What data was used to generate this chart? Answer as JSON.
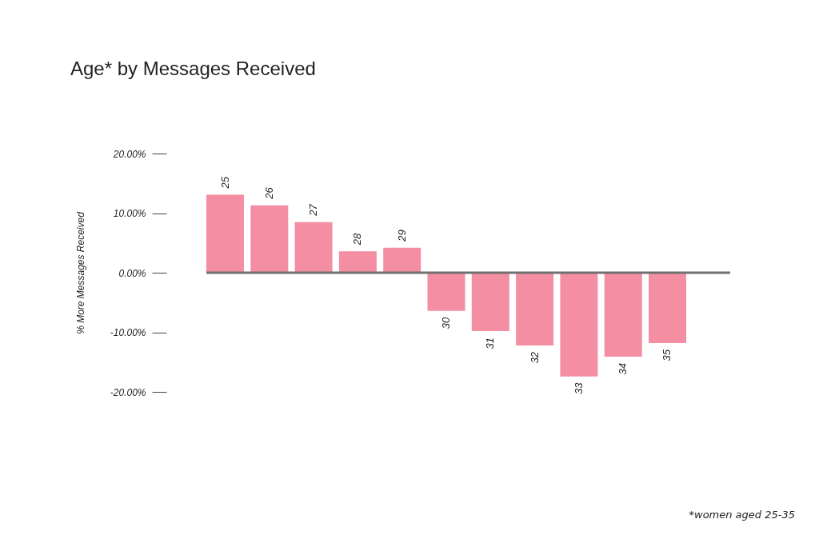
{
  "chart_data": {
    "type": "bar",
    "title": "Age* by Messages Received",
    "ylabel": "% More Messages Received",
    "categories": [
      "25",
      "26",
      "27",
      "28",
      "29",
      "30",
      "31",
      "32",
      "33",
      "34",
      "35"
    ],
    "values": [
      13.1,
      11.3,
      8.5,
      3.6,
      4.2,
      -6.4,
      -9.8,
      -12.2,
      -17.4,
      -14.1,
      -11.8
    ],
    "color": "#f48ea2",
    "ylim": [
      -20,
      20
    ],
    "yticks": [
      {
        "value": -20,
        "label": "-20.00%"
      },
      {
        "value": -10,
        "label": "-10.00%"
      },
      {
        "value": 0,
        "label": "0.00%"
      },
      {
        "value": 10,
        "label": "10.00%"
      },
      {
        "value": 20,
        "label": "20.00%"
      }
    ],
    "ref_lines": [
      {
        "axis": "y",
        "value": 0,
        "color": "#707070"
      }
    ],
    "annotations": [
      "*women aged 25-35"
    ],
    "grid": false
  }
}
